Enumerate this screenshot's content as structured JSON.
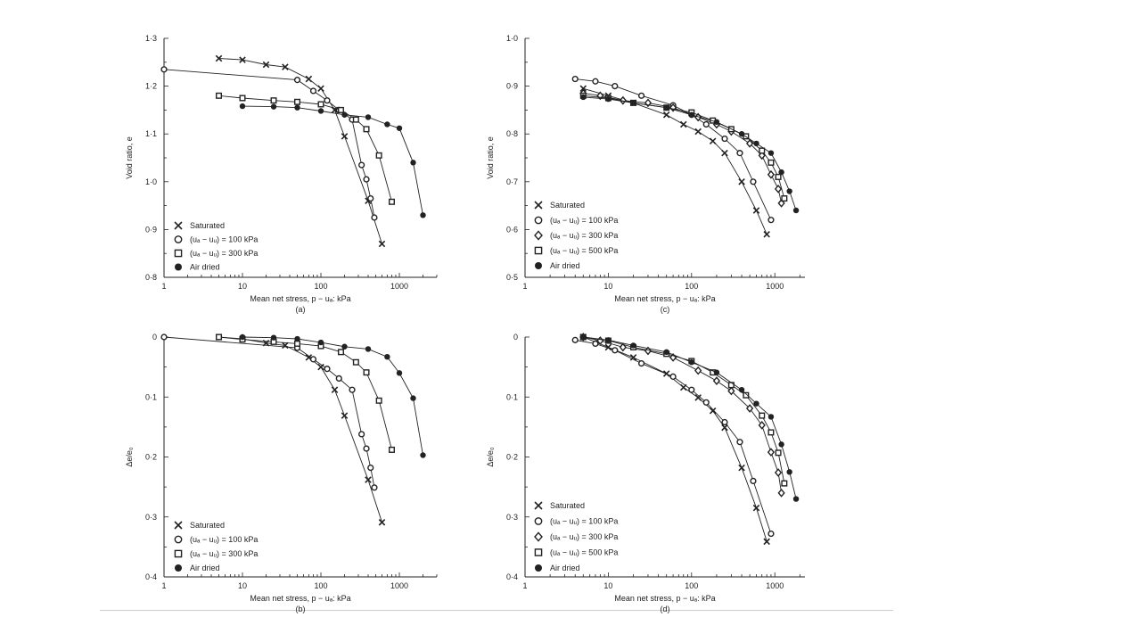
{
  "figure": {
    "background": "#ffffff",
    "ink": "#222222"
  },
  "chart_data": [
    {
      "id": "a",
      "type": "scatter",
      "panel_label": "(a)",
      "xlabel": "Mean net stress, p − uₐ: kPa",
      "ylabel": "Void ratio, e",
      "xscale": "log",
      "xlim": [
        1,
        3000
      ],
      "ylim": [
        0.8,
        1.3
      ],
      "invert_y": false,
      "xticks": [
        {
          "v": 1,
          "label": "1"
        },
        {
          "v": 10,
          "label": "10"
        },
        {
          "v": 100,
          "label": "100"
        },
        {
          "v": 1000,
          "label": "1000"
        }
      ],
      "yticks": [
        {
          "v": 0.8,
          "label": "0·8"
        },
        {
          "v": 0.9,
          "label": "0·9"
        },
        {
          "v": 1.0,
          "label": "1·0"
        },
        {
          "v": 1.1,
          "label": "1·1"
        },
        {
          "v": 1.2,
          "label": "1·2"
        },
        {
          "v": 1.3,
          "label": "1·3"
        }
      ],
      "legend_position": "bottom-left",
      "series": [
        {
          "name": "Saturated",
          "marker": "x",
          "x": [
            5,
            10,
            20,
            35,
            70,
            100,
            150,
            200,
            400,
            600
          ],
          "y": [
            1.258,
            1.255,
            1.245,
            1.24,
            1.215,
            1.195,
            1.15,
            1.095,
            0.96,
            0.87
          ]
        },
        {
          "name": "(uₐ − uᵤ) = 100 kPa",
          "marker": "circle",
          "x": [
            1,
            50,
            80,
            120,
            170,
            250,
            330,
            380,
            430,
            480
          ],
          "y": [
            1.235,
            1.213,
            1.19,
            1.17,
            1.15,
            1.13,
            1.035,
            1.005,
            0.965,
            0.925
          ]
        },
        {
          "name": "(uₐ − uᵤ) = 300 kPa",
          "marker": "square",
          "x": [
            5,
            10,
            25,
            50,
            100,
            180,
            280,
            380,
            550,
            800
          ],
          "y": [
            1.18,
            1.175,
            1.17,
            1.167,
            1.162,
            1.15,
            1.13,
            1.11,
            1.055,
            0.958
          ]
        },
        {
          "name": "Air dried",
          "marker": "dot",
          "x": [
            10,
            25,
            50,
            100,
            200,
            400,
            700,
            1000,
            1500,
            2000
          ],
          "y": [
            1.158,
            1.157,
            1.155,
            1.148,
            1.14,
            1.135,
            1.12,
            1.112,
            1.04,
            0.93
          ]
        }
      ]
    },
    {
      "id": "c",
      "type": "scatter",
      "panel_label": "(c)",
      "xlabel": "Mean net stress, p − uₐ: kPa",
      "ylabel": "Void ratio, e",
      "xscale": "log",
      "xlim": [
        1,
        2300
      ],
      "ylim": [
        0.5,
        1.0
      ],
      "invert_y": false,
      "xticks": [
        {
          "v": 1,
          "label": "1"
        },
        {
          "v": 10,
          "label": "10"
        },
        {
          "v": 100,
          "label": "100"
        },
        {
          "v": 1000,
          "label": "1000"
        }
      ],
      "yticks": [
        {
          "v": 0.5,
          "label": "0·5"
        },
        {
          "v": 0.6,
          "label": "0·6"
        },
        {
          "v": 0.7,
          "label": "0·7"
        },
        {
          "v": 0.8,
          "label": "0·8"
        },
        {
          "v": 0.9,
          "label": "0·9"
        },
        {
          "v": 1.0,
          "label": "1·0"
        }
      ],
      "legend_position": "bottom-left",
      "series": [
        {
          "name": "Saturated",
          "marker": "x",
          "x": [
            5,
            10,
            20,
            50,
            80,
            120,
            180,
            250,
            400,
            600,
            800
          ],
          "y": [
            0.895,
            0.88,
            0.865,
            0.84,
            0.82,
            0.805,
            0.785,
            0.76,
            0.7,
            0.64,
            0.59
          ]
        },
        {
          "name": "(uₐ − uᵤ) = 100 kPa",
          "marker": "circle",
          "x": [
            4,
            7,
            12,
            25,
            60,
            100,
            150,
            250,
            380,
            550,
            900
          ],
          "y": [
            0.915,
            0.91,
            0.9,
            0.88,
            0.86,
            0.84,
            0.82,
            0.79,
            0.76,
            0.7,
            0.62
          ]
        },
        {
          "name": "(uₐ − uᵤ) = 300 kPa",
          "marker": "diamond",
          "x": [
            5,
            8,
            15,
            30,
            60,
            120,
            200,
            300,
            500,
            700,
            900,
            1100,
            1200
          ],
          "y": [
            0.885,
            0.88,
            0.87,
            0.865,
            0.855,
            0.835,
            0.82,
            0.805,
            0.78,
            0.755,
            0.715,
            0.685,
            0.655
          ]
        },
        {
          "name": "(uₐ − uᵤ) = 500 kPa",
          "marker": "square",
          "x": [
            5,
            10,
            20,
            50,
            100,
            180,
            300,
            450,
            700,
            900,
            1100,
            1300
          ],
          "y": [
            0.88,
            0.875,
            0.865,
            0.855,
            0.845,
            0.828,
            0.81,
            0.795,
            0.765,
            0.74,
            0.71,
            0.665
          ]
        },
        {
          "name": "Air dried",
          "marker": "dot",
          "x": [
            5,
            10,
            20,
            50,
            100,
            200,
            400,
            600,
            900,
            1200,
            1500,
            1800
          ],
          "y": [
            0.877,
            0.873,
            0.865,
            0.855,
            0.84,
            0.825,
            0.8,
            0.78,
            0.76,
            0.72,
            0.68,
            0.64
          ]
        }
      ]
    },
    {
      "id": "b",
      "type": "scatter",
      "panel_label": "(b)",
      "xlabel": "Mean net stress, p − uₐ: kPa",
      "ylabel": "Δe/e₀",
      "xscale": "log",
      "xlim": [
        1,
        3000
      ],
      "ylim": [
        0,
        0.4
      ],
      "invert_y": true,
      "xticks": [
        {
          "v": 1,
          "label": "1"
        },
        {
          "v": 10,
          "label": "10"
        },
        {
          "v": 100,
          "label": "100"
        },
        {
          "v": 1000,
          "label": "1000"
        }
      ],
      "yticks": [
        {
          "v": 0,
          "label": "0"
        },
        {
          "v": 0.1,
          "label": "0·1"
        },
        {
          "v": 0.2,
          "label": "0·2"
        },
        {
          "v": 0.3,
          "label": "0·3"
        },
        {
          "v": 0.4,
          "label": "0·4"
        }
      ],
      "legend_position": "bottom-left",
      "series": [
        {
          "name": "Saturated",
          "marker": "x",
          "x": [
            5,
            10,
            20,
            35,
            70,
            100,
            150,
            200,
            400,
            600
          ],
          "y": [
            0.0,
            0.003,
            0.01,
            0.014,
            0.034,
            0.05,
            0.088,
            0.131,
            0.238,
            0.309
          ]
        },
        {
          "name": "(uₐ − uᵤ) = 100 kPa",
          "marker": "circle",
          "x": [
            1,
            50,
            80,
            120,
            170,
            250,
            330,
            380,
            430,
            480
          ],
          "y": [
            0.0,
            0.018,
            0.037,
            0.053,
            0.069,
            0.088,
            0.162,
            0.186,
            0.218,
            0.251
          ]
        },
        {
          "name": "(uₐ − uᵤ) = 300 kPa",
          "marker": "square",
          "x": [
            5,
            10,
            25,
            50,
            100,
            180,
            280,
            380,
            550,
            800
          ],
          "y": [
            0.0,
            0.004,
            0.008,
            0.011,
            0.015,
            0.025,
            0.042,
            0.059,
            0.106,
            0.188
          ]
        },
        {
          "name": "Air dried",
          "marker": "dot",
          "x": [
            10,
            25,
            50,
            100,
            200,
            400,
            700,
            1000,
            1500,
            2000
          ],
          "y": [
            0.0,
            0.001,
            0.003,
            0.009,
            0.016,
            0.02,
            0.033,
            0.06,
            0.102,
            0.197
          ]
        }
      ]
    },
    {
      "id": "d",
      "type": "scatter",
      "panel_label": "(d)",
      "xlabel": "Mean net stress, p − uₐ: kPa",
      "ylabel": "Δe/e₀",
      "xscale": "log",
      "xlim": [
        1,
        2300
      ],
      "ylim": [
        0,
        0.4
      ],
      "invert_y": true,
      "xticks": [
        {
          "v": 1,
          "label": "1"
        },
        {
          "v": 10,
          "label": "10"
        },
        {
          "v": 100,
          "label": "100"
        },
        {
          "v": 1000,
          "label": "1000"
        }
      ],
      "yticks": [
        {
          "v": 0,
          "label": "0"
        },
        {
          "v": 0.1,
          "label": "0·1"
        },
        {
          "v": 0.2,
          "label": "0·2"
        },
        {
          "v": 0.3,
          "label": "0·3"
        },
        {
          "v": 0.4,
          "label": "0·4"
        }
      ],
      "legend_position": "bottom-left",
      "series": [
        {
          "name": "Saturated",
          "marker": "x",
          "x": [
            5,
            10,
            20,
            50,
            80,
            120,
            180,
            250,
            400,
            600,
            800
          ],
          "y": [
            0.0,
            0.017,
            0.034,
            0.061,
            0.084,
            0.101,
            0.123,
            0.151,
            0.218,
            0.285,
            0.341
          ]
        },
        {
          "name": "(uₐ − uᵤ) = 100 kPa",
          "marker": "circle",
          "x": [
            4,
            7,
            12,
            25,
            60,
            100,
            150,
            250,
            380,
            550,
            900
          ],
          "y": [
            0.005,
            0.011,
            0.022,
            0.044,
            0.066,
            0.088,
            0.109,
            0.142,
            0.175,
            0.24,
            0.328
          ]
        },
        {
          "name": "(uₐ − uᵤ) = 300 kPa",
          "marker": "diamond",
          "x": [
            5,
            8,
            15,
            30,
            60,
            120,
            200,
            300,
            500,
            700,
            900,
            1100,
            1200
          ],
          "y": [
            0.0,
            0.006,
            0.017,
            0.023,
            0.034,
            0.056,
            0.073,
            0.09,
            0.119,
            0.147,
            0.192,
            0.226,
            0.26
          ]
        },
        {
          "name": "(uₐ − uᵤ) = 500 kPa",
          "marker": "square",
          "x": [
            5,
            10,
            20,
            50,
            100,
            180,
            300,
            450,
            700,
            900,
            1100,
            1300
          ],
          "y": [
            0.0,
            0.006,
            0.017,
            0.028,
            0.04,
            0.059,
            0.08,
            0.097,
            0.131,
            0.159,
            0.193,
            0.244
          ]
        },
        {
          "name": "Air dried",
          "marker": "dot",
          "x": [
            5,
            10,
            20,
            50,
            100,
            200,
            400,
            600,
            900,
            1200,
            1500,
            1800
          ],
          "y": [
            0.0,
            0.005,
            0.014,
            0.025,
            0.042,
            0.059,
            0.088,
            0.111,
            0.133,
            0.179,
            0.225,
            0.27
          ]
        }
      ]
    }
  ]
}
